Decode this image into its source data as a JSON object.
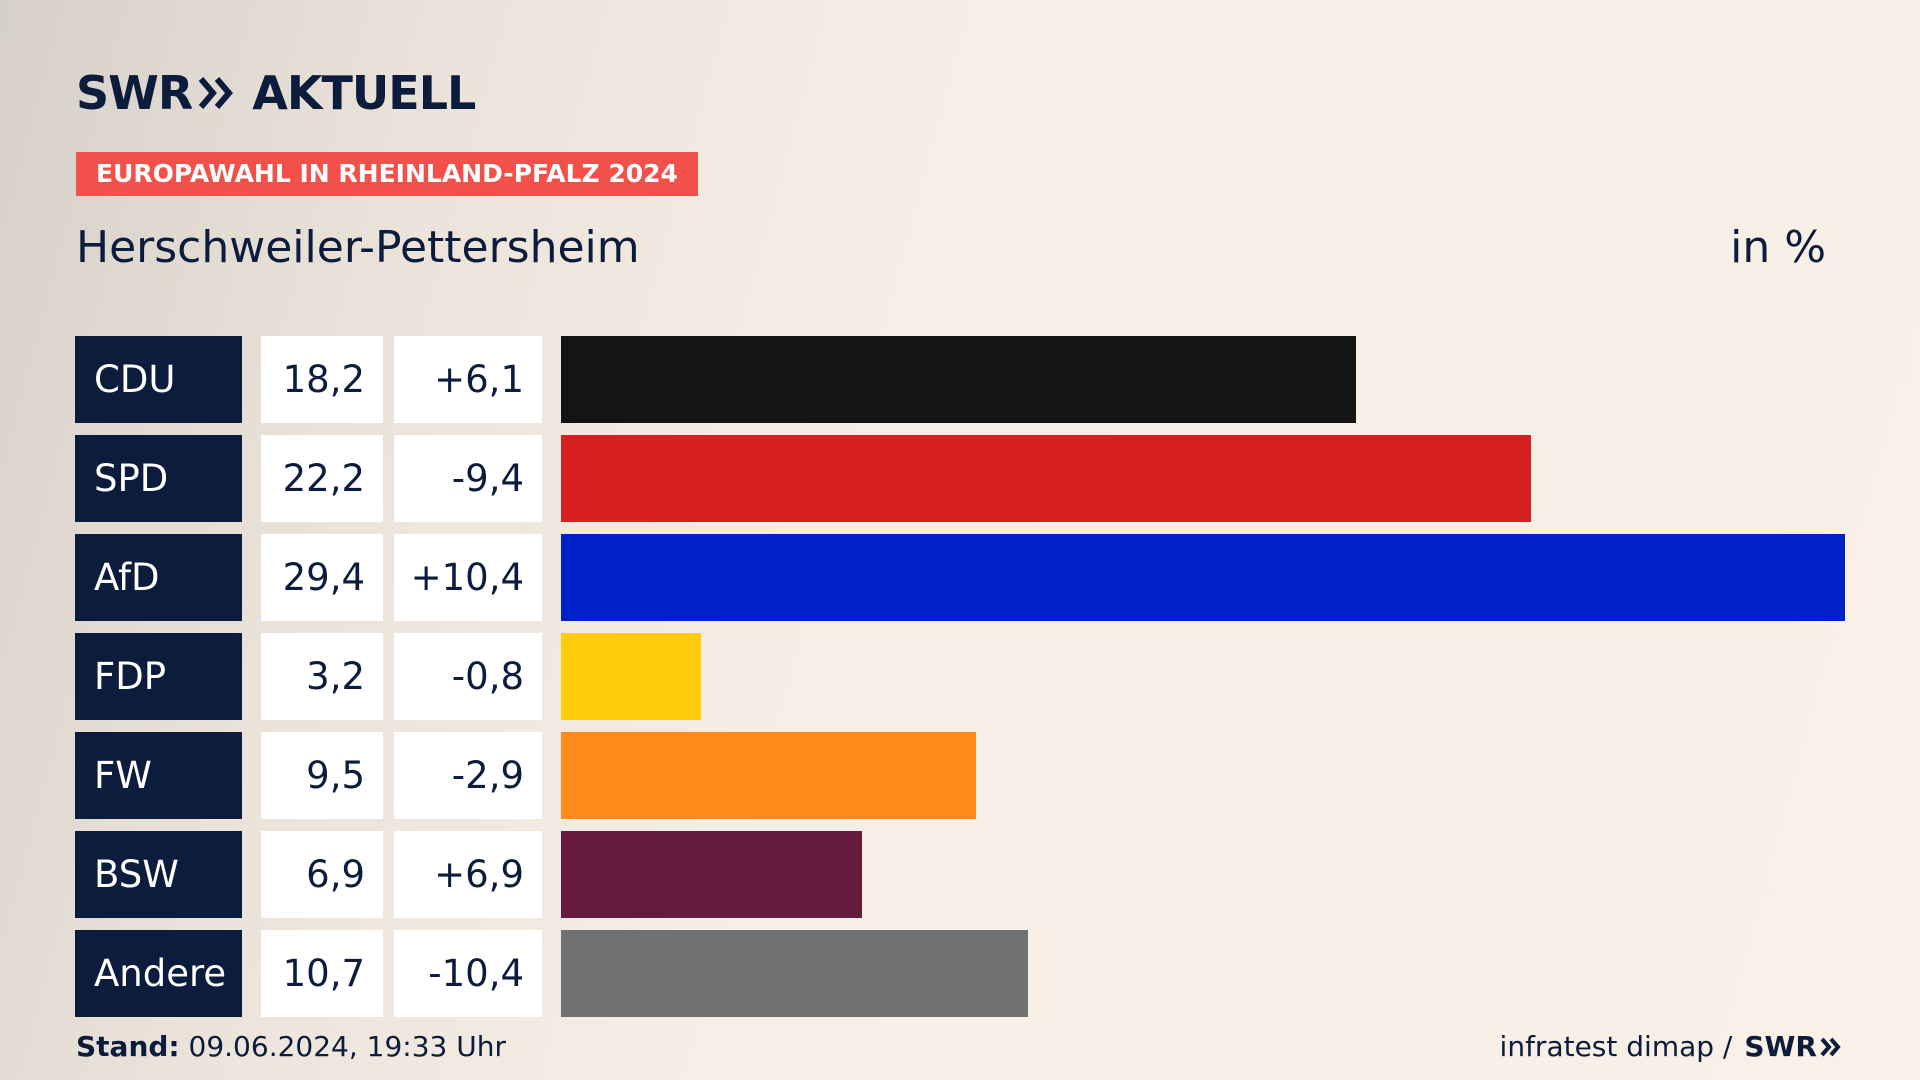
{
  "header": {
    "logo_left": "SWR",
    "logo_right": "AKTUELL",
    "badge": "EUROPAWAHL IN RHEINLAND-PFALZ 2024",
    "place": "Herschweiler-Pettersheim",
    "unit": "in %"
  },
  "footer": {
    "stand_label": "Stand:",
    "stand_value": "09.06.2024, 19:33 Uhr",
    "source": "infratest dimap /",
    "source_logo": "SWR"
  },
  "chart_data": {
    "type": "bar",
    "orientation": "horizontal",
    "title": "Europawahl in Rheinland-Pfalz 2024 – Herschweiler-Pettersheim",
    "unit": "in %",
    "xlim": [
      0,
      29.4
    ],
    "categories": [
      "CDU",
      "SPD",
      "AfD",
      "FDP",
      "FW",
      "BSW",
      "Andere"
    ],
    "values": [
      18.2,
      22.2,
      29.4,
      3.2,
      9.5,
      6.9,
      10.7
    ],
    "value_labels": [
      "18,2",
      "22,2",
      "29,4",
      "3,2",
      "9,5",
      "6,9",
      "10,7"
    ],
    "changes": [
      6.1,
      -9.4,
      10.4,
      -0.8,
      -2.9,
      6.9,
      -10.4
    ],
    "change_labels": [
      "+6,1",
      "-9,4",
      "+10,4",
      "-0,8",
      "-2,9",
      "+6,9",
      "-10,4"
    ],
    "colors": [
      "#141414",
      "#d6201f",
      "#0021c8",
      "#ffcc0b",
      "#ff8c1a",
      "#661a3e",
      "#707173"
    ]
  }
}
